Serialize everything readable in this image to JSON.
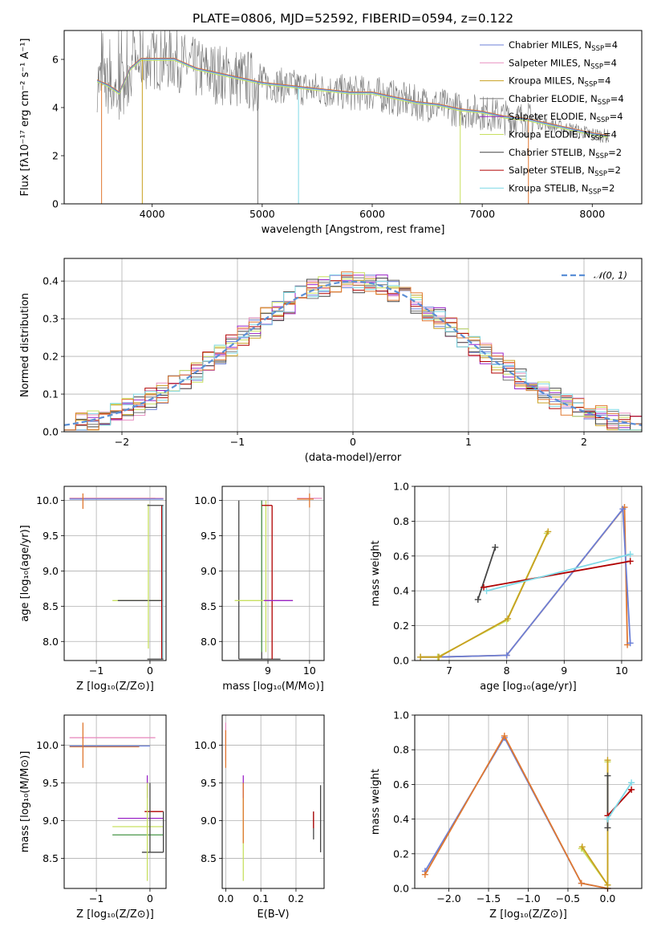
{
  "figure": {
    "title": "PLATE=0806, MJD=52592, FIBERID=0594, z=0.122"
  },
  "colors": {
    "Chabrier MILES": "#6b7fd7",
    "Salpeter MILES": "#e88fc0",
    "Kroupa MILES": "#c8a020",
    "Chabrier ELODIE": "#777777",
    "Salpeter ELODIE": "#9a22c8",
    "Kroupa ELODIE": "#c8e060",
    "Chabrier STELIB": "#444444",
    "Salpeter STELIB": "#b00000",
    "Kroupa STELIB": "#7fd9e6",
    "extra_orange": "#e07830",
    "extra_green": "#5aa05a",
    "normal_curve": "#5b8fd6"
  },
  "chart_data": [
    {
      "id": "spectrum",
      "type": "line",
      "xlabel": "wavelength [Angstrom, rest frame]",
      "ylabel": "Flux [fλ10⁻¹⁷ erg cm⁻² s⁻¹ A⁻¹]",
      "xlim": [
        3200,
        8450
      ],
      "ylim": [
        0,
        7.2
      ],
      "xticks": [
        4000,
        5000,
        6000,
        7000,
        8000
      ],
      "yticks": [
        0,
        2,
        4,
        6
      ],
      "legend_position": "top-right",
      "legend": [
        {
          "name": "Chabrier MILES, N",
          "sub": "SSP",
          "suffix": "=4",
          "color_key": "Chabrier MILES"
        },
        {
          "name": "Salpeter MILES, N",
          "sub": "SSP",
          "suffix": "=4",
          "color_key": "Salpeter MILES"
        },
        {
          "name": "Kroupa MILES, N",
          "sub": "SSP",
          "suffix": "=4",
          "color_key": "Kroupa MILES"
        },
        {
          "name": "Chabrier ELODIE, N",
          "sub": "SSP",
          "suffix": "=4",
          "color_key": "Chabrier ELODIE"
        },
        {
          "name": "Salpeter ELODIE, N",
          "sub": "SSP",
          "suffix": "=4",
          "color_key": "Salpeter ELODIE"
        },
        {
          "name": "Kroupa ELODIE, N",
          "sub": "SSP",
          "suffix": "=4",
          "color_key": "Kroupa ELODIE"
        },
        {
          "name": "Chabrier STELIB, N",
          "sub": "SSP",
          "suffix": "=2",
          "color_key": "Chabrier STELIB"
        },
        {
          "name": "Salpeter STELIB, N",
          "sub": "SSP",
          "suffix": "=2",
          "color_key": "Salpeter STELIB"
        },
        {
          "name": "Kroupa STELIB, N",
          "sub": "SSP",
          "suffix": "=2",
          "color_key": "Kroupa STELIB"
        }
      ],
      "continuum": [
        [
          3500,
          5.1
        ],
        [
          3600,
          4.9
        ],
        [
          3700,
          4.6
        ],
        [
          3800,
          5.6
        ],
        [
          3900,
          6.0
        ],
        [
          4000,
          6.0
        ],
        [
          4200,
          6.0
        ],
        [
          4400,
          5.6
        ],
        [
          4600,
          5.4
        ],
        [
          4800,
          5.2
        ],
        [
          5000,
          5.0
        ],
        [
          5200,
          4.9
        ],
        [
          5400,
          4.8
        ],
        [
          5600,
          4.7
        ],
        [
          5800,
          4.6
        ],
        [
          6000,
          4.6
        ],
        [
          6200,
          4.4
        ],
        [
          6400,
          4.2
        ],
        [
          6600,
          4.1
        ],
        [
          6800,
          3.9
        ],
        [
          7000,
          3.8
        ],
        [
          7200,
          3.6
        ],
        [
          7400,
          3.5
        ],
        [
          7600,
          3.3
        ],
        [
          7800,
          3.1
        ],
        [
          8000,
          2.9
        ],
        [
          8150,
          2.8
        ]
      ]
    },
    {
      "id": "residuals",
      "type": "bar",
      "xlabel": "(data-model)/error",
      "ylabel": "Normed distribution",
      "xlim": [
        -2.5,
        2.5
      ],
      "ylim": [
        0,
        0.46
      ],
      "xticks": [
        -2,
        -1,
        0,
        1,
        2
      ],
      "yticks": [
        0.0,
        0.1,
        0.2,
        0.3,
        0.4
      ],
      "grid": true,
      "legend_position": "top-right",
      "legend": [
        {
          "name": "𝒩(0, 1)"
        }
      ]
    },
    {
      "id": "age-vs-Z",
      "type": "scatter",
      "xlabel": "Z [log₁₀(Z/Z⊙)]",
      "ylabel": "age  [log₁₀(age/yr)]",
      "xlim": [
        -1.6,
        0.3
      ],
      "ylim": [
        7.73,
        10.2
      ],
      "xticks": [
        -1,
        0
      ],
      "yticks": [
        8.0,
        8.5,
        9.0,
        9.5,
        10.0
      ],
      "grid": true
    },
    {
      "id": "age-vs-mass",
      "type": "scatter",
      "xlabel": "mass [log₁₀(M/M⊙)]",
      "ylabel": "",
      "xlim": [
        7.9,
        10.35
      ],
      "ylim": [
        7.73,
        10.2
      ],
      "xticks": [
        9,
        10
      ],
      "yticks": [
        8.0,
        8.5,
        9.0,
        9.5,
        10.0
      ],
      "grid": true
    },
    {
      "id": "massweight-vs-age",
      "type": "line",
      "xlabel": "age  [log₁₀(age/yr)]",
      "ylabel": "mass weight",
      "xlim": [
        6.4,
        10.35
      ],
      "ylim": [
        0,
        1.0
      ],
      "xticks": [
        7,
        8,
        9,
        10
      ],
      "yticks": [
        0.0,
        0.2,
        0.4,
        0.6,
        0.8,
        1.0
      ],
      "grid": true,
      "series": [
        {
          "color_key": "extra_orange",
          "x": [
            6.5,
            6.8,
            8.0,
            10.05,
            10.1
          ],
          "y": [
            0.02,
            0.02,
            0.03,
            0.88,
            0.09
          ]
        },
        {
          "color_key": "Chabrier MILES",
          "x": [
            6.5,
            6.8,
            8.0,
            10.02,
            10.15
          ],
          "y": [
            0.02,
            0.02,
            0.03,
            0.87,
            0.1
          ]
        },
        {
          "color_key": "Kroupa ELODIE",
          "x": [
            6.5,
            6.8,
            8.0,
            8.7
          ],
          "y": [
            0.02,
            0.02,
            0.23,
            0.73
          ]
        },
        {
          "color_key": "Kroupa MILES",
          "x": [
            6.5,
            6.82,
            8.02,
            8.72
          ],
          "y": [
            0.02,
            0.02,
            0.24,
            0.74
          ]
        },
        {
          "color_key": "Chabrier STELIB",
          "x": [
            7.5,
            7.8
          ],
          "y": [
            0.35,
            0.65
          ]
        },
        {
          "color_key": "Salpeter STELIB",
          "x": [
            7.6,
            10.15
          ],
          "y": [
            0.42,
            0.57
          ]
        },
        {
          "color_key": "Kroupa STELIB",
          "x": [
            7.65,
            10.15
          ],
          "y": [
            0.4,
            0.61
          ]
        }
      ]
    },
    {
      "id": "mass-vs-Z",
      "type": "scatter",
      "xlabel": "Z [log₁₀(Z/Z⊙)]",
      "ylabel": "mass [log₁₀(M/M⊙)]",
      "xlim": [
        -1.6,
        0.3
      ],
      "ylim": [
        8.1,
        10.4
      ],
      "xticks": [
        -1,
        0
      ],
      "yticks": [
        8.5,
        9.0,
        9.5,
        10.0
      ],
      "grid": true
    },
    {
      "id": "mass-vs-EBV",
      "type": "scatter",
      "xlabel": "E(B-V)",
      "ylabel": "",
      "xlim": [
        -0.01,
        0.28
      ],
      "ylim": [
        8.1,
        10.4
      ],
      "xticks": [
        0.0,
        0.1,
        0.2
      ],
      "yticks": [
        8.5,
        9.0,
        9.5,
        10.0
      ],
      "grid": true
    },
    {
      "id": "massweight-vs-Z",
      "type": "line",
      "xlabel": "Z [log₁₀(Z/Z⊙)]",
      "ylabel": "mass weight",
      "xlim": [
        -2.43,
        0.43
      ],
      "ylim": [
        0,
        1.0
      ],
      "xticks": [
        -2.0,
        -1.5,
        -1.0,
        -0.5,
        0.0
      ],
      "yticks": [
        0.0,
        0.2,
        0.4,
        0.6,
        0.8,
        1.0
      ],
      "grid": true,
      "series": [
        {
          "color_key": "Chabrier MILES",
          "x": [
            -2.3,
            -1.3,
            -0.33,
            0.0
          ],
          "y": [
            0.1,
            0.87,
            0.03,
            0.0
          ]
        },
        {
          "color_key": "extra_orange",
          "x": [
            -2.3,
            -1.3,
            -0.33,
            0.0
          ],
          "y": [
            0.08,
            0.88,
            0.03,
            0.0
          ]
        },
        {
          "color_key": "Kroupa ELODIE",
          "x": [
            -0.33,
            0.0,
            0.0
          ],
          "y": [
            0.23,
            0.02,
            0.73
          ]
        },
        {
          "color_key": "Kroupa MILES",
          "x": [
            -0.32,
            0.0,
            0.0
          ],
          "y": [
            0.24,
            0.02,
            0.74
          ]
        },
        {
          "color_key": "Chabrier STELIB",
          "x": [
            0.0,
            0.0
          ],
          "y": [
            0.35,
            0.65
          ]
        },
        {
          "color_key": "Salpeter STELIB",
          "x": [
            0.0,
            0.3
          ],
          "y": [
            0.42,
            0.57
          ]
        },
        {
          "color_key": "Kroupa STELIB",
          "x": [
            0.0,
            0.3
          ],
          "y": [
            0.4,
            0.61
          ]
        }
      ]
    }
  ]
}
